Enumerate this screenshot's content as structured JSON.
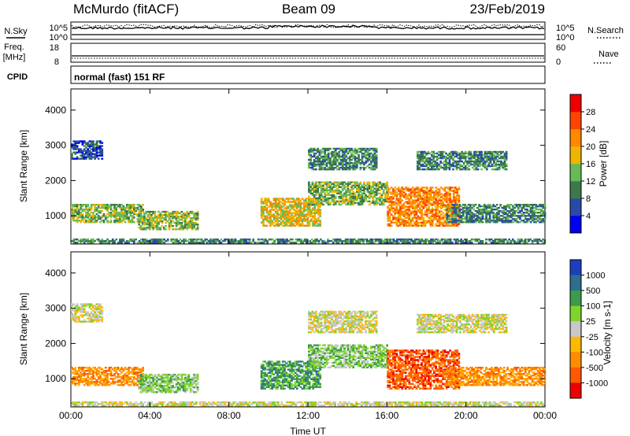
{
  "header": {
    "station": "McMurdo (fitACF)",
    "beam": "Beam 09",
    "date": "23/Feb/2019"
  },
  "top_panel": {
    "nsky_label": "N.Sky",
    "nsearch_label": "N.Search",
    "nsky_ticks": [
      "10^5",
      "10^0"
    ],
    "nsearch_ticks": [
      "10^5",
      "10^0"
    ],
    "freq_label_1": "Freq.",
    "freq_label_2": "[MHz]",
    "freq_ticks": [
      "18",
      "8"
    ],
    "nave_label": "Nave",
    "nave_ticks": [
      "60",
      "0"
    ],
    "cpid_label": "CPID",
    "cpid_value": "normal (fast) 151 RF"
  },
  "chart_data": [
    {
      "type": "heatmap",
      "name": "power",
      "ylabel": "Slant Range [km]",
      "yticks": [
        1000,
        2000,
        3000,
        4000
      ],
      "ylim": [
        200,
        4600
      ],
      "xlim_hours": [
        0,
        24
      ],
      "xticks": [
        "00:00",
        "04:00",
        "08:00",
        "12:00",
        "16:00",
        "20:00",
        "00:00"
      ],
      "colorbar": {
        "label": "Power [dB]",
        "ticks": [
          "4",
          "8",
          "12",
          "16",
          "20",
          "24",
          "28"
        ],
        "colors": [
          "#0000f0",
          "#2a4aa8",
          "#3a7a4a",
          "#66bb55",
          "#f0b400",
          "#ff8800",
          "#ff4400",
          "#ee0000"
        ]
      },
      "echo_regions": [
        {
          "t0": 0.0,
          "t1": 3.6,
          "r0": 800,
          "r1": 1300,
          "level": 3
        },
        {
          "t0": 3.4,
          "t1": 6.4,
          "r0": 600,
          "r1": 1100,
          "level": 3
        },
        {
          "t0": 9.6,
          "t1": 12.6,
          "r0": 700,
          "r1": 1500,
          "level": 4
        },
        {
          "t0": 12.0,
          "t1": 16.0,
          "r0": 1300,
          "r1": 1950,
          "level": 3
        },
        {
          "t0": 16.0,
          "t1": 19.6,
          "r0": 700,
          "r1": 1800,
          "level": 5
        },
        {
          "t0": 19.0,
          "t1": 24.0,
          "r0": 800,
          "r1": 1300,
          "level": 2
        },
        {
          "t0": 12.0,
          "t1": 15.5,
          "r0": 2300,
          "r1": 2900,
          "level": 2
        },
        {
          "t0": 17.5,
          "t1": 22.0,
          "r0": 2300,
          "r1": 2800,
          "level": 2
        },
        {
          "t0": 0.0,
          "t1": 1.6,
          "r0": 2600,
          "r1": 3100,
          "level": 1
        },
        {
          "t0": 0.0,
          "t1": 24.0,
          "r0": 220,
          "r1": 320,
          "level": 2
        }
      ]
    },
    {
      "type": "heatmap",
      "name": "velocity",
      "ylabel": "Slant Range [km]",
      "yticks": [
        1000,
        2000,
        3000,
        4000
      ],
      "ylim": [
        200,
        4600
      ],
      "xlim_hours": [
        0,
        24
      ],
      "xticks": [
        "00:00",
        "04:00",
        "08:00",
        "12:00",
        "16:00",
        "20:00",
        "00:00"
      ],
      "xlabel": "Time UT",
      "colorbar": {
        "label": "Velocity [m s-1]",
        "ticks": [
          "1000",
          "500",
          "100",
          "25",
          "-25",
          "-100",
          "-500",
          "-1000"
        ],
        "colors": [
          "#1b3fbf",
          "#2e6e8e",
          "#3c9a4c",
          "#7ed42c",
          "#c8c8c8",
          "#ffb800",
          "#ff8c00",
          "#ff5a00",
          "#ee0000"
        ]
      },
      "echo_regions": [
        {
          "t0": 0.0,
          "t1": 3.6,
          "r0": 800,
          "r1": 1300,
          "level": 6
        },
        {
          "t0": 3.4,
          "t1": 6.4,
          "r0": 600,
          "r1": 1100,
          "level": 3
        },
        {
          "t0": 9.6,
          "t1": 12.6,
          "r0": 700,
          "r1": 1500,
          "level": 2
        },
        {
          "t0": 12.0,
          "t1": 16.0,
          "r0": 1300,
          "r1": 1950,
          "level": 3
        },
        {
          "t0": 16.0,
          "t1": 19.6,
          "r0": 700,
          "r1": 1800,
          "level": 7
        },
        {
          "t0": 19.0,
          "t1": 24.0,
          "r0": 800,
          "r1": 1300,
          "level": 6
        },
        {
          "t0": 12.0,
          "t1": 15.5,
          "r0": 2300,
          "r1": 2900,
          "level": 4
        },
        {
          "t0": 17.5,
          "t1": 22.0,
          "r0": 2300,
          "r1": 2800,
          "level": 4
        },
        {
          "t0": 0.0,
          "t1": 1.6,
          "r0": 2600,
          "r1": 3100,
          "level": 4
        },
        {
          "t0": 0.0,
          "t1": 24.0,
          "r0": 220,
          "r1": 320,
          "level": 4
        }
      ]
    }
  ]
}
